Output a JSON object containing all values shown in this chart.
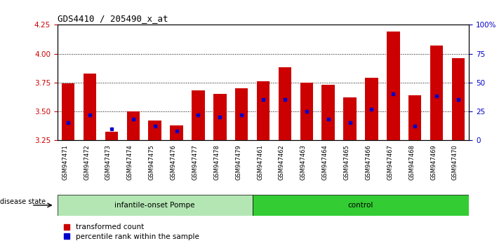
{
  "title": "GDS4410 / 205490_x_at",
  "categories": [
    "GSM947471",
    "GSM947472",
    "GSM947473",
    "GSM947474",
    "GSM947475",
    "GSM947476",
    "GSM947477",
    "GSM947478",
    "GSM947479",
    "GSM947461",
    "GSM947462",
    "GSM947463",
    "GSM947464",
    "GSM947465",
    "GSM947466",
    "GSM947467",
    "GSM947468",
    "GSM947469",
    "GSM947470"
  ],
  "transformed_count": [
    3.74,
    3.83,
    3.32,
    3.5,
    3.42,
    3.38,
    3.68,
    3.65,
    3.7,
    3.76,
    3.88,
    3.75,
    3.73,
    3.62,
    3.79,
    4.19,
    3.64,
    4.07,
    3.96
  ],
  "percentile_rank": [
    15,
    22,
    10,
    18,
    12,
    8,
    22,
    20,
    22,
    35,
    35,
    25,
    18,
    15,
    27,
    40,
    12,
    38,
    35
  ],
  "group_labels": [
    "infantile-onset Pompe",
    "control"
  ],
  "group_sizes": [
    9,
    10
  ],
  "ylim": [
    3.25,
    4.25
  ],
  "yticks": [
    3.25,
    3.5,
    3.75,
    4.0,
    4.25
  ],
  "right_yticks": [
    0,
    25,
    50,
    75,
    100
  ],
  "right_ylim": [
    0,
    100
  ],
  "bar_color": "#cc0000",
  "percentile_color": "#0000cc",
  "group1_color": "#b3e6b3",
  "group2_color": "#33cc33",
  "xtick_bg_color": "#d0d0d0",
  "tick_color_left": "#cc0000",
  "tick_color_right": "#0000cc",
  "bar_width": 0.6,
  "legend_labels": [
    "transformed count",
    "percentile rank within the sample"
  ]
}
